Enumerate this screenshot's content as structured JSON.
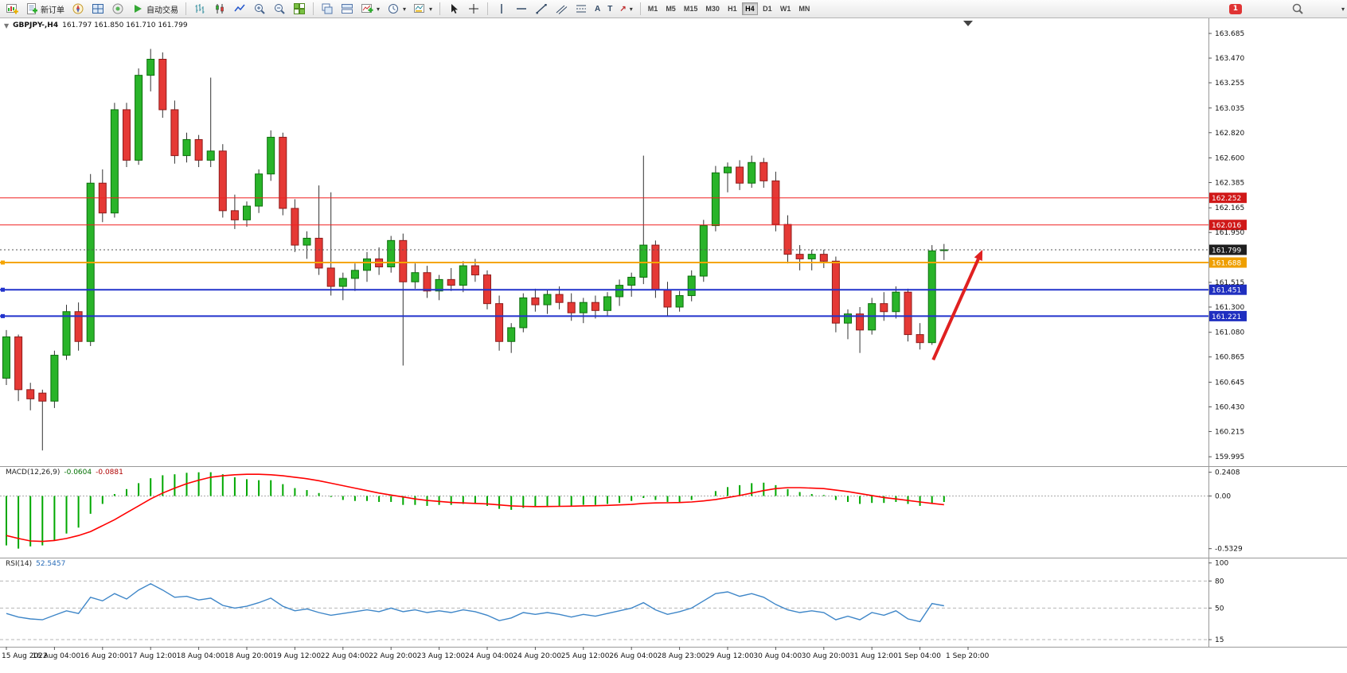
{
  "toolbar": {
    "new_order_label": "新订单",
    "autotrade_label": "自动交易",
    "timeframes": [
      "M1",
      "M5",
      "M15",
      "M30",
      "H1",
      "H4",
      "D1",
      "W1",
      "MN"
    ],
    "active_timeframe": "H4",
    "notification_count": "1"
  },
  "icons": {
    "caret": "▾",
    "one_click": "▼",
    "text_tool": "A",
    "label_tool": "T",
    "arrow_tool": "↗"
  },
  "header": {
    "symbol": "GBPJPY-,H4",
    "ohlc": "161.797 161.850 161.710 161.799"
  },
  "chart_data": {
    "type": "candlestick",
    "symbol": "GBPJPY-",
    "timeframe": "H4",
    "candle_colors": {
      "up": "#29b429",
      "up_border": "#0c6e0c",
      "down": "#e53935",
      "down_border": "#8e1b1b",
      "wick": "#333333"
    },
    "price_axis": {
      "ylim": [
        159.92,
        163.81
      ],
      "labels": [
        "163.685",
        "163.470",
        "163.255",
        "163.035",
        "162.820",
        "162.600",
        "162.385",
        "162.165",
        "161.950",
        "161.515",
        "161.300",
        "161.080",
        "160.865",
        "160.645",
        "160.430",
        "160.215",
        "159.995"
      ]
    },
    "candles": [
      [
        160.68,
        161.1,
        160.62,
        161.04
      ],
      [
        161.04,
        161.06,
        160.48,
        160.58
      ],
      [
        160.58,
        160.64,
        160.4,
        160.5
      ],
      [
        160.55,
        160.58,
        160.05,
        160.48
      ],
      [
        160.48,
        160.92,
        160.42,
        160.88
      ],
      [
        160.88,
        161.32,
        160.84,
        161.26
      ],
      [
        161.26,
        161.34,
        160.92,
        161.0
      ],
      [
        161.0,
        162.46,
        160.96,
        162.38
      ],
      [
        162.38,
        162.5,
        162.04,
        162.12
      ],
      [
        162.12,
        163.08,
        162.08,
        163.02
      ],
      [
        163.02,
        163.08,
        162.52,
        162.58
      ],
      [
        162.58,
        163.38,
        162.54,
        163.32
      ],
      [
        163.32,
        163.55,
        163.18,
        163.46
      ],
      [
        163.46,
        163.52,
        162.95,
        163.02
      ],
      [
        163.02,
        163.1,
        162.55,
        162.62
      ],
      [
        162.62,
        162.82,
        162.56,
        162.76
      ],
      [
        162.76,
        162.8,
        162.52,
        162.58
      ],
      [
        162.58,
        163.3,
        162.52,
        162.66
      ],
      [
        162.66,
        162.72,
        162.08,
        162.14
      ],
      [
        162.14,
        162.28,
        161.98,
        162.06
      ],
      [
        162.06,
        162.22,
        162.0,
        162.18
      ],
      [
        162.18,
        162.5,
        162.12,
        162.46
      ],
      [
        162.46,
        162.84,
        162.4,
        162.78
      ],
      [
        162.78,
        162.82,
        162.1,
        162.16
      ],
      [
        162.16,
        162.24,
        161.78,
        161.84
      ],
      [
        161.84,
        161.96,
        161.72,
        161.9
      ],
      [
        161.9,
        162.36,
        161.58,
        161.64
      ],
      [
        161.64,
        162.3,
        161.4,
        161.48
      ],
      [
        161.48,
        161.6,
        161.36,
        161.55
      ],
      [
        161.55,
        161.68,
        161.44,
        161.62
      ],
      [
        161.62,
        161.78,
        161.52,
        161.72
      ],
      [
        161.72,
        161.82,
        161.58,
        161.65
      ],
      [
        161.65,
        161.92,
        161.6,
        161.88
      ],
      [
        161.88,
        161.94,
        160.79,
        161.52
      ],
      [
        161.52,
        161.68,
        161.46,
        161.6
      ],
      [
        161.6,
        161.66,
        161.38,
        161.44
      ],
      [
        161.44,
        161.58,
        161.36,
        161.54
      ],
      [
        161.54,
        161.64,
        161.44,
        161.49
      ],
      [
        161.49,
        161.7,
        161.43,
        161.66
      ],
      [
        161.66,
        161.72,
        161.52,
        161.58
      ],
      [
        161.58,
        161.62,
        161.28,
        161.33
      ],
      [
        161.33,
        161.4,
        160.92,
        161.0
      ],
      [
        161.0,
        161.16,
        160.9,
        161.12
      ],
      [
        161.12,
        161.42,
        161.08,
        161.38
      ],
      [
        161.38,
        161.46,
        161.26,
        161.32
      ],
      [
        161.32,
        161.45,
        161.24,
        161.41
      ],
      [
        161.41,
        161.48,
        161.28,
        161.34
      ],
      [
        161.34,
        161.42,
        161.18,
        161.25
      ],
      [
        161.25,
        161.38,
        161.16,
        161.34
      ],
      [
        161.34,
        161.4,
        161.2,
        161.27
      ],
      [
        161.27,
        161.43,
        161.22,
        161.39
      ],
      [
        161.39,
        161.54,
        161.31,
        161.49
      ],
      [
        161.49,
        161.6,
        161.39,
        161.56
      ],
      [
        161.56,
        162.62,
        161.5,
        161.84
      ],
      [
        161.84,
        161.88,
        161.38,
        161.45
      ],
      [
        161.45,
        161.52,
        161.22,
        161.3
      ],
      [
        161.3,
        161.44,
        161.26,
        161.4
      ],
      [
        161.4,
        161.62,
        161.35,
        161.57
      ],
      [
        161.57,
        162.06,
        161.52,
        162.01
      ],
      [
        162.01,
        162.53,
        161.96,
        162.47
      ],
      [
        162.47,
        162.56,
        162.3,
        162.52
      ],
      [
        162.52,
        162.58,
        162.32,
        162.38
      ],
      [
        162.38,
        162.62,
        162.34,
        162.56
      ],
      [
        162.56,
        162.6,
        162.34,
        162.4
      ],
      [
        162.4,
        162.48,
        161.96,
        162.02
      ],
      [
        162.02,
        162.1,
        161.68,
        161.76
      ],
      [
        161.76,
        161.84,
        161.62,
        161.72
      ],
      [
        161.72,
        161.8,
        161.62,
        161.76
      ],
      [
        161.76,
        161.8,
        161.64,
        161.7
      ],
      [
        161.7,
        161.74,
        161.08,
        161.16
      ],
      [
        161.16,
        161.28,
        161.02,
        161.24
      ],
      [
        161.24,
        161.3,
        160.9,
        161.1
      ],
      [
        161.1,
        161.38,
        161.06,
        161.33
      ],
      [
        161.33,
        161.43,
        161.18,
        161.26
      ],
      [
        161.26,
        161.48,
        161.2,
        161.43
      ],
      [
        161.43,
        161.46,
        161.0,
        161.06
      ],
      [
        161.06,
        161.16,
        160.93,
        160.99
      ],
      [
        160.99,
        161.84,
        160.97,
        161.79
      ],
      [
        161.797,
        161.85,
        161.71,
        161.799
      ]
    ],
    "levels": [
      {
        "price": 162.252,
        "label": "162.252",
        "color": "#f02020",
        "tag_color": "#d01818",
        "width": 1,
        "style": "solid",
        "tag": true,
        "handle": false
      },
      {
        "price": 162.016,
        "label": "162.016",
        "color": "#f02020",
        "tag_color": "#d01818",
        "width": 1,
        "style": "solid",
        "tag": true,
        "handle": false
      },
      {
        "price": 161.688,
        "label": "161.688",
        "color": "#f5a500",
        "tag_color": "#ef9f00",
        "width": 2,
        "style": "solid",
        "tag": true,
        "handle": true
      },
      {
        "price": 161.451,
        "label": "161.451",
        "color": "#2233cc",
        "tag_color": "#1f2fc0",
        "width": 2,
        "style": "solid",
        "tag": true,
        "handle": true
      },
      {
        "price": 161.221,
        "label": "161.221",
        "color": "#2233cc",
        "tag_color": "#1f2fc0",
        "width": 2,
        "style": "solid",
        "tag": true,
        "handle": true
      },
      {
        "price": 161.799,
        "label": "161.799",
        "color": "#555555",
        "tag_color": "#1f1f1f",
        "width": 1,
        "style": "dotted",
        "tag": true,
        "handle": false
      }
    ],
    "time_axis": {
      "labels": [
        {
          "i": 0,
          "t": "15 Aug 2022"
        },
        {
          "i": 4,
          "t": "16 Aug 04:00"
        },
        {
          "i": 8,
          "t": "16 Aug 20:00"
        },
        {
          "i": 12,
          "t": "17 Aug 12:00"
        },
        {
          "i": 16,
          "t": "18 Aug 04:00"
        },
        {
          "i": 20,
          "t": "18 Aug 20:00"
        },
        {
          "i": 24,
          "t": "19 Aug 12:00"
        },
        {
          "i": 28,
          "t": "22 Aug 04:00"
        },
        {
          "i": 32,
          "t": "22 Aug 20:00"
        },
        {
          "i": 36,
          "t": "23 Aug 12:00"
        },
        {
          "i": 40,
          "t": "24 Aug 04:00"
        },
        {
          "i": 44,
          "t": "24 Aug 20:00"
        },
        {
          "i": 48,
          "t": "25 Aug 12:00"
        },
        {
          "i": 52,
          "t": "26 Aug 04:00"
        },
        {
          "i": 56,
          "t": "28 Aug 23:00"
        },
        {
          "i": 60,
          "t": "29 Aug 12:00"
        },
        {
          "i": 64,
          "t": "30 Aug 04:00"
        },
        {
          "i": 68,
          "t": "30 Aug 20:00"
        },
        {
          "i": 72,
          "t": "31 Aug 12:00"
        },
        {
          "i": 76,
          "t": "1 Sep 04:00"
        },
        {
          "i": 80,
          "t": "1 Sep 20:00"
        }
      ]
    },
    "arrow": {
      "from_bar": 77.1,
      "from_price": 160.84,
      "to_bar": 81.2,
      "to_price": 161.8,
      "color": "#e02020"
    },
    "shift_marker_bar": 80,
    "macd": {
      "name": "MACD(12,26,9)",
      "value_main": "-0.0604",
      "value_signal": "-0.0881",
      "ylim": [
        -0.616,
        0.294
      ],
      "hist_color": "#00a800",
      "signal_color": "#ff0000",
      "scale": [
        {
          "t": "0.2408",
          "v": 0.2408
        },
        {
          "t": "0.00",
          "v": 0
        },
        {
          "t": "-0.5329",
          "v": -0.5329
        }
      ],
      "hist": [
        -0.5,
        -0.5329,
        -0.51,
        -0.5,
        -0.45,
        -0.38,
        -0.32,
        -0.18,
        -0.08,
        0.02,
        0.07,
        0.13,
        0.18,
        0.21,
        0.22,
        0.235,
        0.24,
        0.2408,
        0.22,
        0.19,
        0.17,
        0.16,
        0.16,
        0.12,
        0.08,
        0.06,
        0.03,
        -0.01,
        -0.04,
        -0.05,
        -0.05,
        -0.06,
        -0.06,
        -0.09,
        -0.09,
        -0.1,
        -0.09,
        -0.09,
        -0.08,
        -0.08,
        -0.1,
        -0.13,
        -0.14,
        -0.12,
        -0.11,
        -0.1,
        -0.1,
        -0.1,
        -0.09,
        -0.09,
        -0.08,
        -0.07,
        -0.05,
        -0.02,
        -0.04,
        -0.06,
        -0.06,
        -0.04,
        0.0,
        0.05,
        0.09,
        0.11,
        0.13,
        0.135,
        0.11,
        0.07,
        0.04,
        0.02,
        0.01,
        -0.04,
        -0.06,
        -0.08,
        -0.07,
        -0.07,
        -0.06,
        -0.08,
        -0.1,
        -0.07,
        -0.0604
      ],
      "signal": [
        -0.4,
        -0.43,
        -0.455,
        -0.46,
        -0.45,
        -0.43,
        -0.4,
        -0.36,
        -0.3,
        -0.24,
        -0.17,
        -0.1,
        -0.03,
        0.03,
        0.08,
        0.125,
        0.16,
        0.19,
        0.205,
        0.215,
        0.22,
        0.22,
        0.215,
        0.205,
        0.19,
        0.175,
        0.155,
        0.13,
        0.105,
        0.08,
        0.055,
        0.03,
        0.01,
        -0.01,
        -0.03,
        -0.045,
        -0.055,
        -0.065,
        -0.07,
        -0.075,
        -0.08,
        -0.09,
        -0.1,
        -0.105,
        -0.107,
        -0.106,
        -0.105,
        -0.103,
        -0.1,
        -0.098,
        -0.095,
        -0.09,
        -0.085,
        -0.075,
        -0.07,
        -0.068,
        -0.066,
        -0.06,
        -0.05,
        -0.035,
        -0.015,
        0.005,
        0.03,
        0.055,
        0.075,
        0.085,
        0.085,
        0.08,
        0.075,
        0.06,
        0.045,
        0.025,
        0.005,
        -0.015,
        -0.03,
        -0.045,
        -0.06,
        -0.075,
        -0.0881
      ]
    },
    "rsi": {
      "name": "RSI(14)",
      "value": "52.5457",
      "ylim": [
        8,
        105
      ],
      "color": "#3e86c8",
      "levels": [
        80,
        50,
        15
      ],
      "scale": [
        {
          "t": "100",
          "v": 100
        },
        {
          "t": "80",
          "v": 80
        },
        {
          "t": "50",
          "v": 50
        },
        {
          "t": "15",
          "v": 15
        }
      ],
      "values": [
        44,
        40,
        38,
        37,
        42,
        47,
        44,
        62,
        58,
        66,
        60,
        70,
        77,
        70,
        62,
        63,
        59,
        61,
        53,
        50,
        52,
        56,
        61,
        52,
        47,
        49,
        45,
        42,
        44,
        46,
        48,
        46,
        50,
        46,
        48,
        45,
        47,
        45,
        48,
        46,
        42,
        36,
        39,
        45,
        43,
        45,
        43,
        40,
        43,
        41,
        44,
        47,
        50,
        56,
        48,
        43,
        46,
        50,
        58,
        66,
        68,
        63,
        66,
        62,
        54,
        48,
        45,
        47,
        45,
        37,
        41,
        37,
        45,
        42,
        47,
        38,
        35,
        55,
        52.5
      ]
    }
  }
}
